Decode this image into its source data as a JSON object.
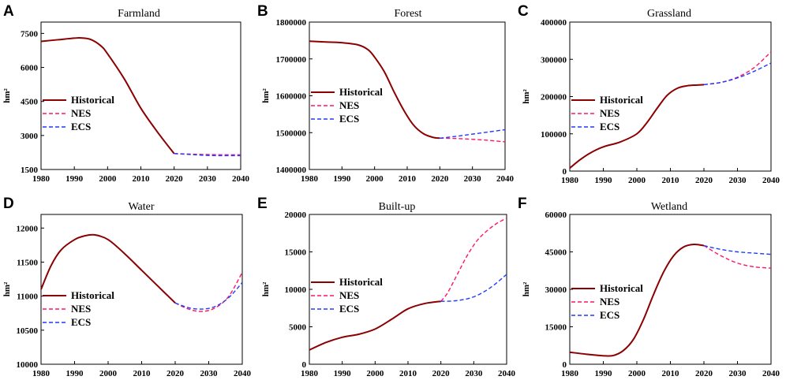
{
  "chart_data": [
    {
      "panel": "A",
      "title": "Farmland",
      "type": "line",
      "ylabel": "hm²",
      "ylim": [
        1500,
        8000
      ],
      "yticks": [
        1500,
        3000,
        4500,
        6000,
        7500
      ],
      "ytick_labels": [
        "1500",
        "3000",
        "4500",
        "6000",
        "7500"
      ],
      "xlim": [
        1980,
        2040
      ],
      "xticks": [
        1980,
        1990,
        2000,
        2010,
        2020,
        2030,
        2040
      ],
      "xtick_labels": [
        "1980",
        "1990",
        "2000",
        "2010",
        "2020",
        "2030",
        "2040"
      ],
      "legend": "center-left",
      "series": [
        {
          "name": "Historical",
          "style": "solid",
          "color": "#8B0000",
          "x": [
            1980,
            1985,
            1990,
            1992,
            1995,
            1998,
            2000,
            2005,
            2010,
            2015,
            2020
          ],
          "y": [
            7150,
            7220,
            7290,
            7300,
            7230,
            6950,
            6600,
            5500,
            4200,
            3150,
            2200
          ]
        },
        {
          "name": "NES",
          "style": "dashed",
          "color": "#FF1466",
          "x": [
            2020,
            2025,
            2030,
            2035,
            2040
          ],
          "y": [
            2200,
            2180,
            2160,
            2150,
            2150
          ]
        },
        {
          "name": "ECS",
          "style": "dashed",
          "color": "#1E3CFF",
          "x": [
            2020,
            2025,
            2030,
            2035,
            2040
          ],
          "y": [
            2200,
            2160,
            2120,
            2110,
            2110
          ]
        }
      ]
    },
    {
      "panel": "B",
      "title": "Forest",
      "type": "line",
      "ylabel": "hm²",
      "ylim": [
        1400000,
        1800000
      ],
      "yticks": [
        1400000,
        1500000,
        1600000,
        1700000,
        1800000
      ],
      "ytick_labels": [
        "1400000",
        "1500000",
        "1600000",
        "1700000",
        "1800000"
      ],
      "xlim": [
        1980,
        2040
      ],
      "xticks": [
        1980,
        1990,
        2000,
        2010,
        2020,
        2030,
        2040
      ],
      "xtick_labels": [
        "1980",
        "1990",
        "2000",
        "2010",
        "2020",
        "2030",
        "2040"
      ],
      "legend": "center-left",
      "series": [
        {
          "name": "Historical",
          "style": "solid",
          "color": "#8B0000",
          "x": [
            1980,
            1985,
            1990,
            1995,
            1998,
            2000,
            2003,
            2006,
            2009,
            2012,
            2015,
            2018,
            2020
          ],
          "y": [
            1748000,
            1746000,
            1744000,
            1738000,
            1725000,
            1705000,
            1665000,
            1610000,
            1560000,
            1520000,
            1497000,
            1487000,
            1485000
          ]
        },
        {
          "name": "NES",
          "style": "dashed",
          "color": "#FF1466",
          "x": [
            2020,
            2025,
            2030,
            2035,
            2040
          ],
          "y": [
            1485000,
            1484000,
            1482000,
            1479000,
            1475000
          ]
        },
        {
          "name": "ECS",
          "style": "dashed",
          "color": "#1E3CFF",
          "x": [
            2020,
            2025,
            2030,
            2035,
            2040
          ],
          "y": [
            1485000,
            1490000,
            1496000,
            1502000,
            1508000
          ]
        }
      ]
    },
    {
      "panel": "C",
      "title": "Grassland",
      "type": "line",
      "ylabel": "hm²",
      "ylim": [
        0,
        400000
      ],
      "yticks": [
        0,
        100000,
        200000,
        300000,
        400000
      ],
      "ytick_labels": [
        "0",
        "100000",
        "200000",
        "300000",
        "400000"
      ],
      "xlim": [
        1980,
        2040
      ],
      "xticks": [
        1980,
        1990,
        2000,
        2010,
        2020,
        2030,
        2040
      ],
      "xtick_labels": [
        "1980",
        "1990",
        "2000",
        "2010",
        "2020",
        "2030",
        "2040"
      ],
      "legend": "center-left",
      "series": [
        {
          "name": "Historical",
          "style": "solid",
          "color": "#8B0000",
          "x": [
            1980,
            1983,
            1986,
            1990,
            1995,
            2000,
            2003,
            2006,
            2009,
            2012,
            2015,
            2018,
            2020
          ],
          "y": [
            8000,
            30000,
            48000,
            65000,
            78000,
            100000,
            130000,
            168000,
            203000,
            222000,
            229000,
            231000,
            232000
          ]
        },
        {
          "name": "NES",
          "style": "dashed",
          "color": "#FF1466",
          "x": [
            2020,
            2025,
            2030,
            2035,
            2040
          ],
          "y": [
            232000,
            238000,
            252000,
            278000,
            320000
          ]
        },
        {
          "name": "ECS",
          "style": "dashed",
          "color": "#1E3CFF",
          "x": [
            2020,
            2025,
            2030,
            2035,
            2040
          ],
          "y": [
            232000,
            238000,
            250000,
            268000,
            290000
          ]
        }
      ]
    },
    {
      "panel": "D",
      "title": "Water",
      "type": "line",
      "ylabel": "hm²",
      "ylim": [
        10000,
        12200
      ],
      "yticks": [
        10000,
        10500,
        11000,
        11500,
        12000
      ],
      "ytick_labels": [
        "10000",
        "10500",
        "11000",
        "11500",
        "12000"
      ],
      "xlim": [
        1980,
        2040
      ],
      "xticks": [
        1980,
        1990,
        2000,
        2010,
        2020,
        2030,
        2040
      ],
      "xtick_labels": [
        "1980",
        "1990",
        "2000",
        "2010",
        "2020",
        "2030",
        "2040"
      ],
      "legend": "bottom-left",
      "series": [
        {
          "name": "Historical",
          "style": "solid",
          "color": "#8B0000",
          "x": [
            1980,
            1983,
            1986,
            1990,
            1993,
            1996,
            2000,
            2005,
            2010,
            2015,
            2020
          ],
          "y": [
            11100,
            11450,
            11680,
            11830,
            11885,
            11900,
            11830,
            11620,
            11380,
            11140,
            10900
          ]
        },
        {
          "name": "NES",
          "style": "dashed",
          "color": "#FF1466",
          "x": [
            2020,
            2024,
            2028,
            2032,
            2036,
            2040
          ],
          "y": [
            10900,
            10810,
            10775,
            10830,
            11000,
            11350
          ]
        },
        {
          "name": "ECS",
          "style": "dashed",
          "color": "#1E3CFF",
          "x": [
            2020,
            2024,
            2028,
            2032,
            2036,
            2040
          ],
          "y": [
            10900,
            10830,
            10810,
            10850,
            10980,
            11200
          ]
        }
      ]
    },
    {
      "panel": "E",
      "title": "Built-up",
      "type": "line",
      "ylabel": "hm²",
      "ylim": [
        0,
        20000
      ],
      "yticks": [
        0,
        5000,
        10000,
        15000,
        20000
      ],
      "ytick_labels": [
        "0",
        "5000",
        "10000",
        "15000",
        "20000"
      ],
      "xlim": [
        1980,
        2040
      ],
      "xticks": [
        1980,
        1990,
        2000,
        2010,
        2020,
        2030,
        2040
      ],
      "xtick_labels": [
        "1980",
        "1990",
        "2000",
        "2010",
        "2020",
        "2030",
        "2040"
      ],
      "legend": "center-left",
      "series": [
        {
          "name": "Historical",
          "style": "solid",
          "color": "#8B0000",
          "x": [
            1980,
            1985,
            1990,
            1995,
            2000,
            2005,
            2010,
            2015,
            2020
          ],
          "y": [
            1900,
            2900,
            3600,
            4000,
            4700,
            6000,
            7400,
            8100,
            8400
          ]
        },
        {
          "name": "NES",
          "style": "dashed",
          "color": "#FF1466",
          "x": [
            2020,
            2022,
            2025,
            2028,
            2031,
            2034,
            2037,
            2040
          ],
          "y": [
            8400,
            9500,
            12000,
            14500,
            16500,
            17800,
            18800,
            19500
          ]
        },
        {
          "name": "ECS",
          "style": "dashed",
          "color": "#1E3CFF",
          "x": [
            2020,
            2025,
            2030,
            2035,
            2040
          ],
          "y": [
            8400,
            8500,
            9000,
            10200,
            12000
          ]
        }
      ]
    },
    {
      "panel": "F",
      "title": "Wetland",
      "type": "line",
      "ylabel": "hm²",
      "ylim": [
        0,
        60000
      ],
      "yticks": [
        0,
        15000,
        30000,
        45000,
        60000
      ],
      "ytick_labels": [
        "0",
        "15000",
        "30000",
        "45000",
        "60000"
      ],
      "xlim": [
        1980,
        2040
      ],
      "xticks": [
        1980,
        1990,
        2000,
        2010,
        2020,
        2030,
        2040
      ],
      "xtick_labels": [
        "1980",
        "1990",
        "2000",
        "2010",
        "2020",
        "2030",
        "2040"
      ],
      "legend": "center-left",
      "series": [
        {
          "name": "Historical",
          "style": "solid",
          "color": "#8B0000",
          "x": [
            1980,
            1985,
            1990,
            1993,
            1996,
            1999,
            2002,
            2005,
            2008,
            2011,
            2014,
            2017,
            2020
          ],
          "y": [
            4800,
            4000,
            3400,
            3500,
            5500,
            10000,
            18000,
            28000,
            37000,
            43500,
            47000,
            48000,
            47500
          ]
        },
        {
          "name": "NES",
          "style": "dashed",
          "color": "#FF1466",
          "x": [
            2020,
            2025,
            2030,
            2035,
            2040
          ],
          "y": [
            47500,
            43500,
            40500,
            39000,
            38500
          ]
        },
        {
          "name": "ECS",
          "style": "dashed",
          "color": "#1E3CFF",
          "x": [
            2020,
            2025,
            2030,
            2035,
            2040
          ],
          "y": [
            47500,
            46000,
            45000,
            44500,
            44000
          ]
        }
      ]
    }
  ]
}
